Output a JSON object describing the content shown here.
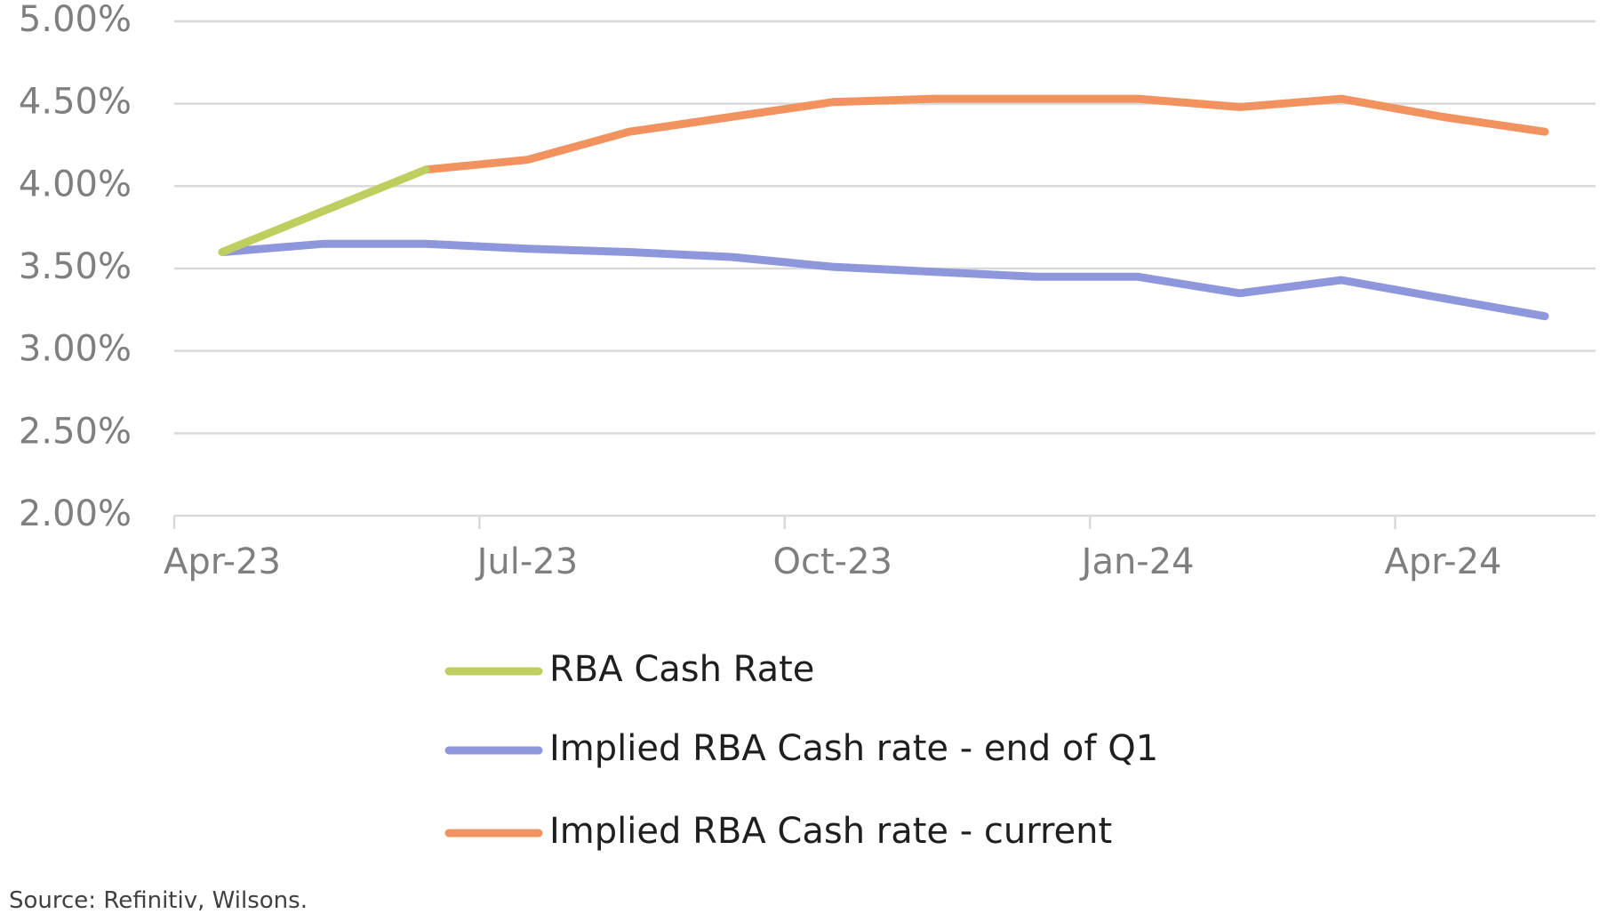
{
  "chart_data": {
    "type": "line",
    "title": "",
    "xlabel": "",
    "ylabel": "",
    "x": [
      "Apr-23",
      "May-23",
      "Jun-23",
      "Jul-23",
      "Aug-23",
      "Sep-23",
      "Oct-23",
      "Nov-23",
      "Dec-23",
      "Jan-24",
      "Feb-24",
      "Mar-24",
      "Apr-24",
      "May-24"
    ],
    "x_tick_labels": [
      "Apr-23",
      "Jul-23",
      "Oct-23",
      "Jan-24",
      "Apr-24"
    ],
    "ylim": [
      0.02,
      0.05
    ],
    "y_ticks": [
      0.02,
      0.025,
      0.03,
      0.035,
      0.04,
      0.045,
      0.05
    ],
    "y_tick_labels": [
      "2.00%",
      "2.50%",
      "3.00%",
      "3.50%",
      "4.00%",
      "4.50%",
      "5.00%"
    ],
    "grid": true,
    "legend_position": "bottom",
    "series": [
      {
        "name": "RBA Cash Rate",
        "color": "#bfcf5f",
        "values": [
          3.6,
          3.85,
          4.1,
          null,
          null,
          null,
          null,
          null,
          null,
          null,
          null,
          null,
          null,
          null
        ]
      },
      {
        "name": "Implied RBA Cash rate - end of Q1",
        "color": "#8f97dc",
        "values": [
          3.6,
          3.65,
          3.65,
          3.62,
          3.6,
          3.57,
          3.51,
          3.48,
          3.45,
          3.45,
          3.35,
          3.43,
          3.32,
          3.21
        ]
      },
      {
        "name": "Implied RBA Cash rate - current",
        "color": "#f2935f",
        "values": [
          null,
          null,
          4.1,
          4.16,
          4.33,
          4.42,
          4.51,
          4.53,
          4.53,
          4.53,
          4.48,
          4.53,
          4.42,
          4.33
        ]
      }
    ]
  },
  "source": "Source: Refinitiv, Wilsons."
}
